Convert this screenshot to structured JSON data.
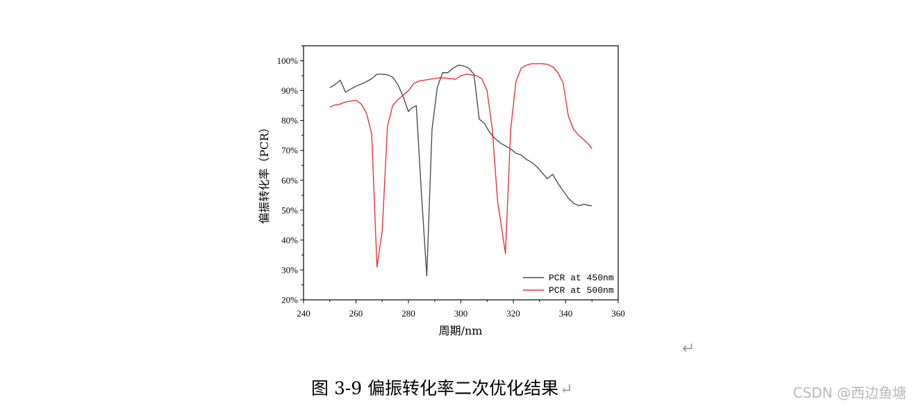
{
  "chart_data": {
    "type": "line",
    "xlabel": "周期/nm",
    "ylabel": "偏振转化率（PCR）",
    "xlim": [
      240,
      360
    ],
    "ylim": [
      20,
      105
    ],
    "x_ticks": [
      240,
      260,
      280,
      300,
      320,
      340,
      360
    ],
    "y_ticks": [
      20,
      30,
      40,
      50,
      60,
      70,
      80,
      90,
      100
    ],
    "y_tick_labels": [
      "20%",
      "30%",
      "40%",
      "50%",
      "60%",
      "70%",
      "80%",
      "90%",
      "100%"
    ],
    "legend_position": "bottom-right",
    "series": [
      {
        "name": "PCR at 450nm",
        "color": "#4d4d4d",
        "x": [
          250,
          252,
          254,
          256,
          258,
          260,
          262,
          264,
          266,
          268,
          270,
          272,
          274,
          276,
          278,
          280,
          281,
          283,
          285,
          287,
          289,
          291,
          293,
          295,
          297,
          299,
          301,
          303,
          305,
          307,
          309,
          311,
          313,
          315,
          317,
          319,
          321,
          323,
          325,
          327,
          329,
          331,
          333,
          335,
          337,
          339,
          341,
          343,
          345,
          347,
          349,
          350
        ],
        "y": [
          91,
          92,
          93.5,
          89.5,
          90.5,
          91.5,
          92.2,
          93,
          94,
          95.5,
          95.5,
          95.3,
          94.5,
          92,
          88,
          83,
          84,
          85,
          55,
          28,
          77,
          91,
          96,
          96,
          97.5,
          98.5,
          98.3,
          97.5,
          95.5,
          80.5,
          79,
          76,
          74,
          72.5,
          71.5,
          70.5,
          69,
          68.5,
          67,
          66,
          64.5,
          62.5,
          60.5,
          62,
          59,
          56.5,
          54,
          52.3,
          51.5,
          52,
          51.5,
          51.5
        ]
      },
      {
        "name": "PCR at 500nm",
        "color": "#e8323c",
        "x": [
          250,
          252,
          254,
          256,
          258,
          260,
          262,
          264,
          266,
          268,
          270,
          272,
          274,
          276,
          278,
          280,
          282,
          284,
          286,
          288,
          290,
          292,
          294,
          296,
          298,
          300,
          302,
          304,
          306,
          308,
          310,
          312,
          314,
          317,
          319,
          321,
          323,
          325,
          327,
          329,
          331,
          333,
          335,
          337,
          339,
          341,
          343,
          345,
          347,
          349,
          350
        ],
        "y": [
          84.5,
          85.2,
          85.5,
          86.2,
          86.5,
          86.8,
          85.5,
          82.5,
          75.5,
          31,
          43,
          78,
          85,
          87,
          88.5,
          90,
          92.3,
          93.2,
          93.5,
          93.8,
          94,
          94.3,
          94.2,
          94,
          93.8,
          95,
          95.5,
          95.3,
          95,
          94,
          90,
          77,
          53,
          35.5,
          77,
          93,
          97.5,
          98.5,
          99,
          99,
          99,
          98.8,
          98,
          96,
          92.5,
          81.5,
          77,
          75,
          73.5,
          71.8,
          70.5
        ]
      }
    ]
  },
  "caption": {
    "text": "图 3-9 偏振转化率二次优化结果",
    "return_mark": "↵"
  },
  "paragraph_mark": "↵",
  "watermark": "CSDN @西边鱼塘"
}
